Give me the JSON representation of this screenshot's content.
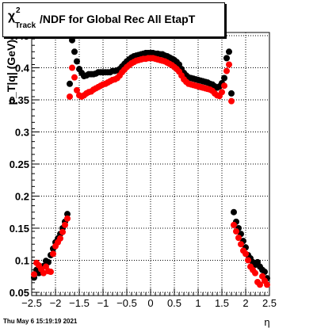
{
  "title": {
    "chi": "χ",
    "sup": "2",
    "sub": "Track",
    "rest": "/NDF for Global Rec All EtapT"
  },
  "timestamp": "Thu May  6 15:19:19 2021",
  "chart_data": {
    "type": "scatter",
    "title": "χ²_Track/NDF for Global Rec All EtapT",
    "xlabel": "η",
    "ylabel": "p_T|q|  (GeV)",
    "xlim": [
      -2.5,
      2.5
    ],
    "ylim": [
      0.045,
      0.455
    ],
    "xticks": [
      -2.5,
      -2,
      -1.5,
      -1,
      -0.5,
      0,
      0.5,
      1,
      1.5,
      2,
      2.5
    ],
    "xtick_labels": [
      "−2.5",
      "−2",
      "−1.5",
      "−1",
      "−0.5",
      "0",
      "0.5",
      "1",
      "1.5",
      "2",
      "2.5"
    ],
    "yticks": [
      0.05,
      0.1,
      0.15,
      0.2,
      0.25,
      0.3,
      0.35,
      0.4,
      0.45
    ],
    "ytick_labels": [
      "0.05",
      "0.1",
      "0.15",
      "0.2",
      "0.25",
      "0.3",
      "0.35",
      "0.4",
      "0.45"
    ],
    "grid": true,
    "series": [
      {
        "color": "#000000",
        "points": [
          [
            -2.45,
            0.073
          ],
          [
            -2.4,
            0.085
          ],
          [
            -2.35,
            0.08
          ],
          [
            -2.3,
            0.083
          ],
          [
            -2.25,
            0.091
          ],
          [
            -2.2,
            0.099
          ],
          [
            -2.15,
            0.097
          ],
          [
            -2.1,
            0.108
          ],
          [
            -2.05,
            0.118
          ],
          [
            -2.0,
            0.128
          ],
          [
            -1.95,
            0.134
          ],
          [
            -1.9,
            0.141
          ],
          [
            -1.85,
            0.15
          ],
          [
            -1.8,
            0.16
          ],
          [
            -1.75,
            0.172
          ],
          [
            -1.7,
            0.375
          ],
          [
            -1.65,
            0.443
          ],
          [
            -1.6,
            0.425
          ],
          [
            -1.55,
            0.41
          ],
          [
            -1.5,
            0.398
          ],
          [
            -1.45,
            0.392
          ],
          [
            -1.4,
            0.387
          ],
          [
            -1.35,
            0.388
          ],
          [
            -1.3,
            0.39
          ],
          [
            -1.25,
            0.39
          ],
          [
            -1.2,
            0.39
          ],
          [
            -1.15,
            0.391
          ],
          [
            -1.1,
            0.393
          ],
          [
            -1.05,
            0.393
          ],
          [
            -1.0,
            0.393
          ],
          [
            -0.95,
            0.393
          ],
          [
            -0.9,
            0.393
          ],
          [
            -0.85,
            0.393
          ],
          [
            -0.8,
            0.395
          ],
          [
            -0.75,
            0.395
          ],
          [
            -0.7,
            0.396
          ],
          [
            -0.65,
            0.398
          ],
          [
            -0.6,
            0.402
          ],
          [
            -0.55,
            0.406
          ],
          [
            -0.5,
            0.41
          ],
          [
            -0.45,
            0.413
          ],
          [
            -0.4,
            0.416
          ],
          [
            -0.35,
            0.418
          ],
          [
            -0.3,
            0.419
          ],
          [
            -0.25,
            0.42
          ],
          [
            -0.2,
            0.421
          ],
          [
            -0.15,
            0.422
          ],
          [
            -0.1,
            0.423
          ],
          [
            -0.05,
            0.423
          ],
          [
            0.0,
            0.423
          ],
          [
            0.05,
            0.423
          ],
          [
            0.1,
            0.422
          ],
          [
            0.15,
            0.422
          ],
          [
            0.2,
            0.421
          ],
          [
            0.25,
            0.421
          ],
          [
            0.3,
            0.419
          ],
          [
            0.35,
            0.418
          ],
          [
            0.4,
            0.416
          ],
          [
            0.45,
            0.414
          ],
          [
            0.5,
            0.412
          ],
          [
            0.55,
            0.409
          ],
          [
            0.6,
            0.405
          ],
          [
            0.65,
            0.398
          ],
          [
            0.7,
            0.392
          ],
          [
            0.75,
            0.388
          ],
          [
            0.8,
            0.385
          ],
          [
            0.85,
            0.384
          ],
          [
            0.9,
            0.383
          ],
          [
            0.95,
            0.382
          ],
          [
            1.0,
            0.381
          ],
          [
            1.05,
            0.38
          ],
          [
            1.1,
            0.379
          ],
          [
            1.15,
            0.378
          ],
          [
            1.2,
            0.377
          ],
          [
            1.25,
            0.375
          ],
          [
            1.3,
            0.374
          ],
          [
            1.35,
            0.371
          ],
          [
            1.4,
            0.369
          ],
          [
            1.45,
            0.371
          ],
          [
            1.5,
            0.376
          ],
          [
            1.55,
            0.384
          ],
          [
            1.6,
            0.415
          ],
          [
            1.65,
            0.425
          ],
          [
            1.7,
            0.36
          ],
          [
            1.75,
            0.175
          ],
          [
            1.8,
            0.16
          ],
          [
            1.85,
            0.15
          ],
          [
            1.9,
            0.141
          ],
          [
            1.95,
            0.13
          ],
          [
            2.0,
            0.12
          ],
          [
            2.05,
            0.108
          ],
          [
            2.1,
            0.103
          ],
          [
            2.15,
            0.097
          ],
          [
            2.2,
            0.093
          ],
          [
            2.25,
            0.097
          ],
          [
            2.3,
            0.09
          ],
          [
            2.35,
            0.085
          ],
          [
            2.4,
            0.082
          ],
          [
            2.45,
            0.072
          ]
        ]
      },
      {
        "color": "#ff0000",
        "points": [
          [
            -2.45,
            0.078
          ],
          [
            -2.4,
            0.096
          ],
          [
            -2.35,
            0.092
          ],
          [
            -2.3,
            0.086
          ],
          [
            -2.25,
            0.08
          ],
          [
            -2.2,
            0.09
          ],
          [
            -2.15,
            0.083
          ],
          [
            -2.1,
            0.082
          ],
          [
            -2.05,
            0.11
          ],
          [
            -2.0,
            0.122
          ],
          [
            -1.95,
            0.128
          ],
          [
            -1.9,
            0.134
          ],
          [
            -1.85,
            0.144
          ],
          [
            -1.8,
            0.155
          ],
          [
            -1.75,
            0.165
          ],
          [
            -1.7,
            0.355
          ],
          [
            -1.65,
            0.4
          ],
          [
            -1.6,
            0.385
          ],
          [
            -1.55,
            0.365
          ],
          [
            -1.5,
            0.357
          ],
          [
            -1.45,
            0.355
          ],
          [
            -1.4,
            0.357
          ],
          [
            -1.35,
            0.36
          ],
          [
            -1.3,
            0.362
          ],
          [
            -1.25,
            0.363
          ],
          [
            -1.2,
            0.366
          ],
          [
            -1.15,
            0.368
          ],
          [
            -1.1,
            0.37
          ],
          [
            -1.05,
            0.372
          ],
          [
            -1.0,
            0.374
          ],
          [
            -0.95,
            0.375
          ],
          [
            -0.9,
            0.377
          ],
          [
            -0.85,
            0.379
          ],
          [
            -0.8,
            0.381
          ],
          [
            -0.75,
            0.382
          ],
          [
            -0.7,
            0.384
          ],
          [
            -0.65,
            0.388
          ],
          [
            -0.6,
            0.393
          ],
          [
            -0.55,
            0.397
          ],
          [
            -0.5,
            0.401
          ],
          [
            -0.45,
            0.404
          ],
          [
            -0.4,
            0.407
          ],
          [
            -0.35,
            0.409
          ],
          [
            -0.3,
            0.411
          ],
          [
            -0.25,
            0.412
          ],
          [
            -0.2,
            0.413
          ],
          [
            -0.15,
            0.414
          ],
          [
            -0.1,
            0.414
          ],
          [
            -0.05,
            0.415
          ],
          [
            0.0,
            0.415
          ],
          [
            0.05,
            0.415
          ],
          [
            0.1,
            0.414
          ],
          [
            0.15,
            0.413
          ],
          [
            0.2,
            0.412
          ],
          [
            0.25,
            0.411
          ],
          [
            0.3,
            0.41
          ],
          [
            0.35,
            0.408
          ],
          [
            0.4,
            0.406
          ],
          [
            0.45,
            0.404
          ],
          [
            0.5,
            0.401
          ],
          [
            0.55,
            0.398
          ],
          [
            0.6,
            0.394
          ],
          [
            0.65,
            0.388
          ],
          [
            0.7,
            0.382
          ],
          [
            0.75,
            0.378
          ],
          [
            0.8,
            0.375
          ],
          [
            0.85,
            0.374
          ],
          [
            0.9,
            0.373
          ],
          [
            0.95,
            0.372
          ],
          [
            1.0,
            0.371
          ],
          [
            1.05,
            0.37
          ],
          [
            1.1,
            0.369
          ],
          [
            1.15,
            0.368
          ],
          [
            1.2,
            0.367
          ],
          [
            1.25,
            0.366
          ],
          [
            1.3,
            0.364
          ],
          [
            1.35,
            0.36
          ],
          [
            1.4,
            0.357
          ],
          [
            1.45,
            0.356
          ],
          [
            1.5,
            0.362
          ],
          [
            1.55,
            0.372
          ],
          [
            1.6,
            0.395
          ],
          [
            1.65,
            0.405
          ],
          [
            1.7,
            0.348
          ],
          [
            1.75,
            0.155
          ],
          [
            1.8,
            0.145
          ],
          [
            1.85,
            0.135
          ],
          [
            1.9,
            0.125
          ],
          [
            1.95,
            0.115
          ],
          [
            2.0,
            0.11
          ],
          [
            2.05,
            0.1
          ],
          [
            2.1,
            0.09
          ],
          [
            2.15,
            0.085
          ],
          [
            2.2,
            0.08
          ],
          [
            2.25,
            0.066
          ],
          [
            2.3,
            0.062
          ],
          [
            2.35,
            0.075
          ],
          [
            2.4,
            0.068
          ],
          [
            2.45,
            0.062
          ]
        ]
      }
    ]
  }
}
